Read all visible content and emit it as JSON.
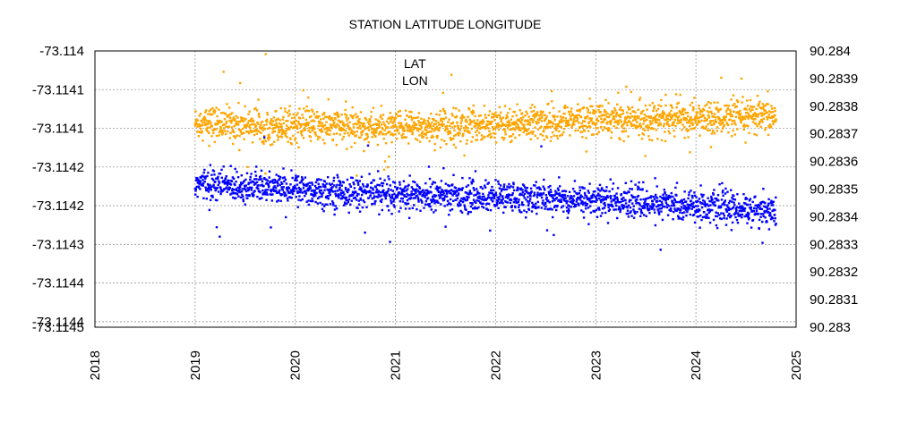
{
  "chart_data": {
    "type": "scatter",
    "title": "STATION LATITUDE LONGITUDE",
    "xlabel": "",
    "ylabel": "",
    "grid": true,
    "legend_placement": "top-center",
    "x_ticks": [
      "2018",
      "2019",
      "2020",
      "2021",
      "2022",
      "2023",
      "2024",
      "2025"
    ],
    "x_range": [
      2018,
      2025
    ],
    "y_left": {
      "range": [
        -73.1145,
        -73.114
      ],
      "tick_values": [
        -73.114,
        -73.11407,
        -73.11414,
        -73.11421,
        -73.11428,
        -73.11435,
        -73.11442,
        -73.11449,
        -73.1145
      ],
      "tick_labels": [
        "-73.114",
        "-73.1141",
        "-73.1141",
        "-73.1142",
        "-73.1142",
        "-73.1143",
        "-73.1144",
        "-73.1144",
        "-73.1145"
      ]
    },
    "y_right": {
      "range": [
        90.283,
        90.284
      ],
      "tick_labels": [
        "90.284",
        "90.2839",
        "90.2838",
        "90.2837",
        "90.2836",
        "90.2835",
        "90.2834",
        "90.2833",
        "90.2832",
        "90.2831",
        "90.283"
      ]
    },
    "series": [
      {
        "name": "LAT",
        "axis": "left",
        "color": "#0000ff",
        "x_start": 2019.0,
        "x_end": 2024.8,
        "trend_y": [
          -73.11424,
          -73.11426,
          -73.11427,
          -73.11429
        ],
        "trend_x": [
          2019.0,
          2021.0,
          2023.0,
          2024.8
        ],
        "spread": 2.8e-05,
        "approx_points": 2100
      },
      {
        "name": "LON",
        "axis": "right",
        "color": "#ffa500",
        "x_start": 2019.0,
        "x_end": 2024.8,
        "trend_y": [
          90.28374,
          90.28372,
          90.28375,
          90.28376
        ],
        "trend_x": [
          2019.0,
          2021.0,
          2023.0,
          2024.8
        ],
        "spread": 6e-05,
        "approx_points": 2100
      }
    ]
  }
}
